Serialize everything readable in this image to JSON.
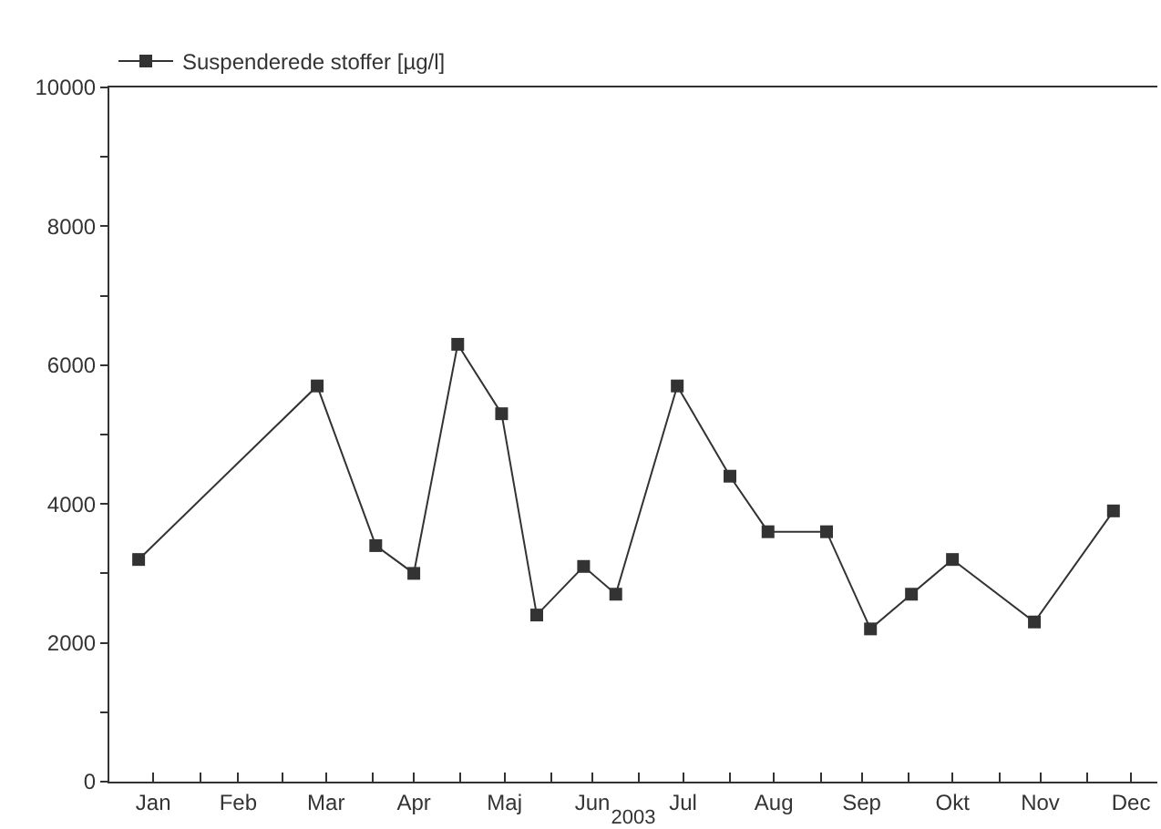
{
  "chart_data": {
    "type": "line",
    "xlabel": "2003",
    "x": [
      "2003-01-11",
      "2003-03-13",
      "2003-04-02",
      "2003-04-15",
      "2003-04-30",
      "2003-05-15",
      "2003-05-27",
      "2003-06-12",
      "2003-06-23",
      "2003-07-14",
      "2003-08-01",
      "2003-08-14",
      "2003-09-03",
      "2003-09-18",
      "2003-10-02",
      "2003-10-16",
      "2003-11-13",
      "2003-12-10"
    ],
    "series": [
      {
        "name": "Suspenderede stoffer [µg/l]",
        "color": "#333333",
        "values": [
          3200,
          5700,
          3400,
          3000,
          6300,
          5300,
          2400,
          3100,
          2700,
          5700,
          4400,
          3600,
          3600,
          2200,
          2700,
          3200,
          2300,
          3900
        ]
      }
    ],
    "xlim": [
      "2003-01-01",
      "2003-12-25"
    ],
    "xticks": [
      {
        "value": "2003-01-16",
        "label": "Jan"
      },
      {
        "value": "2003-02-14",
        "label": "Feb"
      },
      {
        "value": "2003-03-16",
        "label": "Mar"
      },
      {
        "value": "2003-04-15",
        "label": "Apr"
      },
      {
        "value": "2003-05-16",
        "label": "Maj"
      },
      {
        "value": "2003-06-15",
        "label": "Jun"
      },
      {
        "value": "2003-07-16",
        "label": "Jul"
      },
      {
        "value": "2003-08-16",
        "label": "Aug"
      },
      {
        "value": "2003-09-15",
        "label": "Sep"
      },
      {
        "value": "2003-10-16",
        "label": "Okt"
      },
      {
        "value": "2003-11-15",
        "label": "Nov"
      },
      {
        "value": "2003-12-16",
        "label": "Dec"
      },
      {
        "value": "2003-02-01",
        "label": null
      },
      {
        "value": "2003-03-01",
        "label": null
      },
      {
        "value": "2003-04-01",
        "label": null
      },
      {
        "value": "2003-05-01",
        "label": null
      },
      {
        "value": "2003-06-01",
        "label": null
      },
      {
        "value": "2003-07-01",
        "label": null
      },
      {
        "value": "2003-08-01",
        "label": null
      },
      {
        "value": "2003-09-01",
        "label": null
      },
      {
        "value": "2003-10-01",
        "label": null
      },
      {
        "value": "2003-11-01",
        "label": null
      },
      {
        "value": "2003-12-01",
        "label": null
      }
    ],
    "ylim": [
      0,
      10000
    ],
    "yticks": [
      0,
      {
        "value": 1000,
        "label": null
      },
      2000,
      {
        "value": 3000,
        "label": null
      },
      4000,
      {
        "value": 5000,
        "label": null
      },
      6000,
      {
        "value": 7000,
        "label": null
      },
      8000,
      {
        "value": 9000,
        "label": null
      },
      10000
    ],
    "grid": false,
    "legend": "top left",
    "marker": "square",
    "line_style": "solid"
  }
}
